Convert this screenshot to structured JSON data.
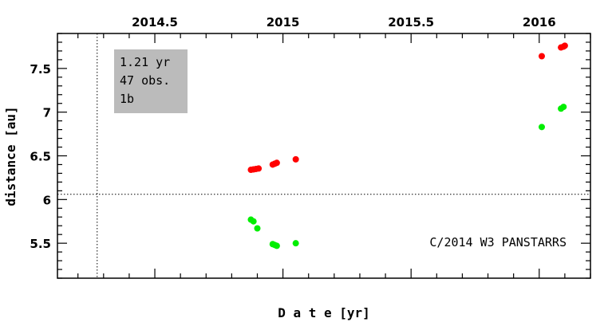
{
  "chart_data": {
    "type": "scatter",
    "xlabel": "D a t e [yr]",
    "ylabel": "distance [au]",
    "xlim": [
      2014.12,
      2016.2
    ],
    "ylim": [
      5.1,
      7.9
    ],
    "x_ticks": [
      {
        "value": 2014.5,
        "label": "2014.5"
      },
      {
        "value": 2015,
        "label": "2015"
      },
      {
        "value": 2015.5,
        "label": "2015.5"
      },
      {
        "value": 2016,
        "label": "2016"
      }
    ],
    "y_ticks": [
      {
        "value": 5.5,
        "label": "5.5"
      },
      {
        "value": 6,
        "label": "6"
      },
      {
        "value": 6.5,
        "label": "6.5"
      },
      {
        "value": 7,
        "label": "7"
      },
      {
        "value": 7.5,
        "label": "7.5"
      }
    ],
    "reference_lines": {
      "vertical_x": 2014.275,
      "horizontal_y": 6.06
    },
    "info_box": {
      "lines": [
        "1.21 yr",
        "47 obs.",
        "1b"
      ],
      "color": "#bbbbbb"
    },
    "object_name": "C/2014 W3 PANSTARRS",
    "series": [
      {
        "color": "#ff0000",
        "x": [
          2014.875,
          2014.885,
          2014.895,
          2014.905,
          2014.96,
          2014.968,
          2014.976,
          2015.05,
          2016.01,
          2016.085,
          2016.095,
          2016.1
        ],
        "y": [
          6.34,
          6.345,
          6.35,
          6.355,
          6.4,
          6.41,
          6.42,
          6.46,
          7.64,
          7.74,
          7.75,
          7.76
        ]
      },
      {
        "color": "#00ee00",
        "x": [
          2014.875,
          2014.885,
          2014.9,
          2014.96,
          2014.968,
          2014.976,
          2015.05,
          2016.01,
          2016.085,
          2016.095
        ],
        "y": [
          5.77,
          5.75,
          5.67,
          5.49,
          5.48,
          5.47,
          5.5,
          6.83,
          7.04,
          7.06
        ]
      }
    ]
  }
}
